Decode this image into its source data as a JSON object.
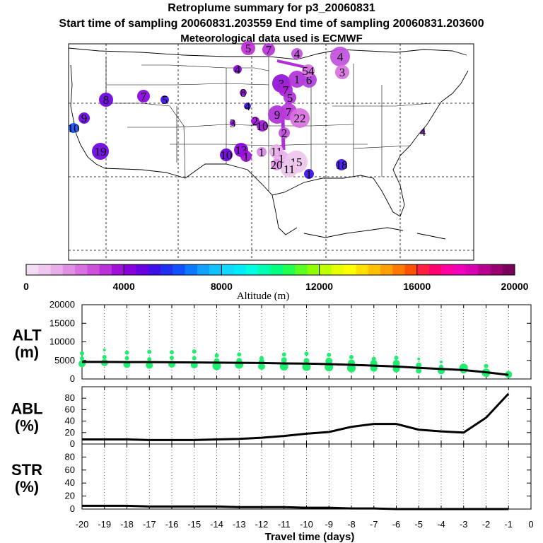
{
  "title": {
    "line1": "Retroplume summary for p3_20060831",
    "line2": "Start time of sampling 20060831.203559     End time of sampling 20060831.203600",
    "line3": "Meteorological data used is ECMWF"
  },
  "colorbar": {
    "title": "Altitude (m)",
    "tick_labels": [
      "0",
      "4000",
      "8000",
      "12000",
      "16000",
      "20000"
    ],
    "colors": [
      "#f4ddf4",
      "#eec6ee",
      "#e8aeea",
      "#e090e4",
      "#d870e0",
      "#cc50dc",
      "#bb30d8",
      "#a010d8",
      "#8800dc",
      "#6a00e0",
      "#3e10e8",
      "#2030f0",
      "#1050ff",
      "#0a78ff",
      "#10a0ff",
      "#10c0ff",
      "#10d8ff",
      "#00ecf8",
      "#00ffe0",
      "#00ffb0",
      "#00ff80",
      "#20ff50",
      "#58ff20",
      "#90ff00",
      "#c0ff00",
      "#e8ff00",
      "#ffff00",
      "#ffe000",
      "#ffc000",
      "#ffa000",
      "#ff7800",
      "#ff5000",
      "#ff2040",
      "#ff0070",
      "#ff00a0",
      "#f000b8",
      "#d800b0",
      "#b80090",
      "#980070",
      "#780058"
    ]
  },
  "map_labels": [
    {
      "text": "5",
      "cx": 0.35
    },
    {
      "text": "7",
      "cx": 0.37
    },
    {
      "text": "4",
      "cx": 0.55
    },
    {
      "text": "4",
      "cx": 0.4
    },
    {
      "text": "3",
      "cx": 0.45
    },
    {
      "text": "1",
      "cx": 0.5
    },
    {
      "text": "7",
      "cx": 0.45
    },
    {
      "text": "5",
      "cx": 0.5
    },
    {
      "text": "6",
      "cx": 0.5
    },
    {
      "text": "54",
      "cx": 0.5
    },
    {
      "text": "4",
      "cx": 0.55
    },
    {
      "text": "3",
      "cx": 0.6
    },
    {
      "text": "8",
      "cx": 0.2
    },
    {
      "text": "7",
      "cx": 0.3
    },
    {
      "text": "5",
      "cx": 0.3
    },
    {
      "text": "8",
      "cx": 0.45
    },
    {
      "text": "4",
      "cx": 0.5
    },
    {
      "text": "9",
      "cx": 0.2
    },
    {
      "text": "10",
      "cx": 0.3
    },
    {
      "text": "3",
      "cx": 0.45
    },
    {
      "text": "2",
      "cx": 0.45
    },
    {
      "text": "10",
      "cx": 0.5
    },
    {
      "text": "9",
      "cx": 0.5
    },
    {
      "text": "7",
      "cx": 0.5
    },
    {
      "text": "22",
      "cx": 0.5
    },
    {
      "text": "2",
      "cx": 0.5
    },
    {
      "text": "19",
      "cx": 0.2
    },
    {
      "text": "10",
      "cx": 0.35
    },
    {
      "text": "13",
      "cx": 0.4
    },
    {
      "text": "1",
      "cx": 0.45
    },
    {
      "text": "1",
      "cx": 0.5
    },
    {
      "text": "11",
      "cx": 0.45
    },
    {
      "text": "1",
      "cx": 0.6
    },
    {
      "text": "15",
      "cx": 0.55
    },
    {
      "text": "11",
      "cx": 0.55
    },
    {
      "text": "20",
      "cx": 0.4
    },
    {
      "text": "18",
      "cx": 0.4
    },
    {
      "text": "1",
      "cx": 0.6
    },
    {
      "text": "4",
      "cx": 0.55
    }
  ],
  "chart_data": [
    {
      "type": "scatter",
      "name": "ALT",
      "ylabel": "ALT\n(m)",
      "ylabel_line1": "ALT",
      "ylabel_line2": "(m)",
      "ylim": [
        0,
        20000
      ],
      "yticks": [
        0,
        5000,
        10000,
        15000,
        20000
      ],
      "ytick_labels": [
        "0",
        "5000",
        "10000",
        "15000",
        "20000"
      ],
      "xlim": [
        -20,
        0
      ],
      "line_x": [
        -20,
        -19,
        -18,
        -17,
        -16,
        -15,
        -14,
        -13,
        -12,
        -11,
        -10,
        -9,
        -8,
        -7,
        -6,
        -5,
        -4,
        -3,
        -2,
        -1
      ],
      "line_y": [
        4600,
        4600,
        4550,
        4550,
        4500,
        4450,
        4400,
        4350,
        4300,
        4200,
        4150,
        4000,
        3800,
        3600,
        3350,
        3000,
        2700,
        2400,
        1800,
        1100
      ],
      "points": [
        {
          "x": -20,
          "y": 6900,
          "s": 3
        },
        {
          "x": -20,
          "y": 5500,
          "s": 3
        },
        {
          "x": -20,
          "y": 4100,
          "s": 5
        },
        {
          "x": -19,
          "y": 7800,
          "s": 2
        },
        {
          "x": -19,
          "y": 5900,
          "s": 3
        },
        {
          "x": -19,
          "y": 4400,
          "s": 5
        },
        {
          "x": -18,
          "y": 7100,
          "s": 3
        },
        {
          "x": -18,
          "y": 5600,
          "s": 3
        },
        {
          "x": -18,
          "y": 3900,
          "s": 5
        },
        {
          "x": -17,
          "y": 7300,
          "s": 3
        },
        {
          "x": -17,
          "y": 5300,
          "s": 3
        },
        {
          "x": -17,
          "y": 3700,
          "s": 5
        },
        {
          "x": -16,
          "y": 7200,
          "s": 3
        },
        {
          "x": -16,
          "y": 5700,
          "s": 3
        },
        {
          "x": -16,
          "y": 4000,
          "s": 5
        },
        {
          "x": -15,
          "y": 7400,
          "s": 3
        },
        {
          "x": -15,
          "y": 5600,
          "s": 3
        },
        {
          "x": -15,
          "y": 3800,
          "s": 5
        },
        {
          "x": -14,
          "y": 6300,
          "s": 3
        },
        {
          "x": -14,
          "y": 4800,
          "s": 4
        },
        {
          "x": -14,
          "y": 3500,
          "s": 6
        },
        {
          "x": -13,
          "y": 6600,
          "s": 3
        },
        {
          "x": -13,
          "y": 4900,
          "s": 4
        },
        {
          "x": -13,
          "y": 3900,
          "s": 6
        },
        {
          "x": -12,
          "y": 5600,
          "s": 3
        },
        {
          "x": -12,
          "y": 4600,
          "s": 4
        },
        {
          "x": -12,
          "y": 3400,
          "s": 5
        },
        {
          "x": -11,
          "y": 6600,
          "s": 3
        },
        {
          "x": -11,
          "y": 5100,
          "s": 4
        },
        {
          "x": -11,
          "y": 3400,
          "s": 6
        },
        {
          "x": -10,
          "y": 6800,
          "s": 3
        },
        {
          "x": -10,
          "y": 4900,
          "s": 4
        },
        {
          "x": -10,
          "y": 3300,
          "s": 6
        },
        {
          "x": -9,
          "y": 6500,
          "s": 3
        },
        {
          "x": -9,
          "y": 4800,
          "s": 5
        },
        {
          "x": -9,
          "y": 3200,
          "s": 6
        },
        {
          "x": -8,
          "y": 5900,
          "s": 3
        },
        {
          "x": -8,
          "y": 4300,
          "s": 5
        },
        {
          "x": -8,
          "y": 2900,
          "s": 6
        },
        {
          "x": -7,
          "y": 5400,
          "s": 3
        },
        {
          "x": -7,
          "y": 4200,
          "s": 5
        },
        {
          "x": -7,
          "y": 2900,
          "s": 5
        },
        {
          "x": -6,
          "y": 5700,
          "s": 3
        },
        {
          "x": -6,
          "y": 4200,
          "s": 5
        },
        {
          "x": -6,
          "y": 2700,
          "s": 5
        },
        {
          "x": -5,
          "y": 5400,
          "s": 2
        },
        {
          "x": -5,
          "y": 3700,
          "s": 4
        },
        {
          "x": -5,
          "y": 2200,
          "s": 4
        },
        {
          "x": -4,
          "y": 4600,
          "s": 2
        },
        {
          "x": -4,
          "y": 3300,
          "s": 3
        },
        {
          "x": -4,
          "y": 2200,
          "s": 5
        },
        {
          "x": -3,
          "y": 3000,
          "s": 6
        },
        {
          "x": -3,
          "y": 2400,
          "s": 5
        },
        {
          "x": -2,
          "y": 3500,
          "s": 3
        },
        {
          "x": -2,
          "y": 1700,
          "s": 6
        },
        {
          "x": -1,
          "y": 1200,
          "s": 5
        }
      ]
    },
    {
      "type": "line",
      "name": "ABL",
      "ylabel_line1": "ABL",
      "ylabel_line2": "(%)",
      "ylim": [
        0,
        100
      ],
      "yticks": [
        0,
        20,
        40,
        60,
        80
      ],
      "ytick_labels": [
        "0",
        "20",
        "40",
        "60",
        "80"
      ],
      "xlim": [
        -20,
        0
      ],
      "x": [
        -20,
        -19,
        -18,
        -17,
        -16,
        -15,
        -14,
        -13,
        -12,
        -11,
        -10,
        -9,
        -8,
        -7,
        -6,
        -5,
        -4,
        -3,
        -2,
        -1
      ],
      "y": [
        8,
        8,
        8,
        7,
        7,
        7,
        8,
        9,
        11,
        14,
        18,
        21,
        30,
        35,
        35,
        25,
        22,
        20,
        46,
        88
      ]
    },
    {
      "type": "line",
      "name": "STR",
      "ylabel_line1": "STR",
      "ylabel_line2": "(%)",
      "ylim": [
        0,
        100
      ],
      "yticks": [
        0,
        20,
        40,
        60,
        80
      ],
      "ytick_labels": [
        "0",
        "20",
        "40",
        "60",
        "80"
      ],
      "xlim": [
        -20,
        0
      ],
      "x": [
        -20,
        -19,
        -18,
        -17,
        -16,
        -15,
        -14,
        -13,
        -12,
        -11,
        -10,
        -9,
        -8,
        -7,
        -6,
        -5,
        -4,
        -3,
        -2,
        -1
      ],
      "y": [
        5,
        5,
        5,
        4,
        4,
        4,
        4,
        3,
        3,
        3,
        2,
        2,
        1,
        1,
        0,
        0,
        0,
        0,
        0,
        0
      ],
      "xlabel": "Travel time (days)",
      "xticks": [
        -20,
        -19,
        -18,
        -17,
        -16,
        -15,
        -14,
        -13,
        -12,
        -11,
        -10,
        -9,
        -8,
        -7,
        -6,
        -5,
        -4,
        -3,
        -2,
        -1,
        0
      ],
      "xtick_labels": [
        "-20",
        "-19",
        "-18",
        "-17",
        "-16",
        "-15",
        "-14",
        "-13",
        "-12",
        "-11",
        "-10",
        "-9",
        "-8",
        "-7",
        "-6",
        "-5",
        "-4",
        "-3",
        "-2",
        "-1",
        "0"
      ]
    }
  ],
  "colors": {
    "alt_points": "#1eed6e",
    "line": "#000000"
  }
}
